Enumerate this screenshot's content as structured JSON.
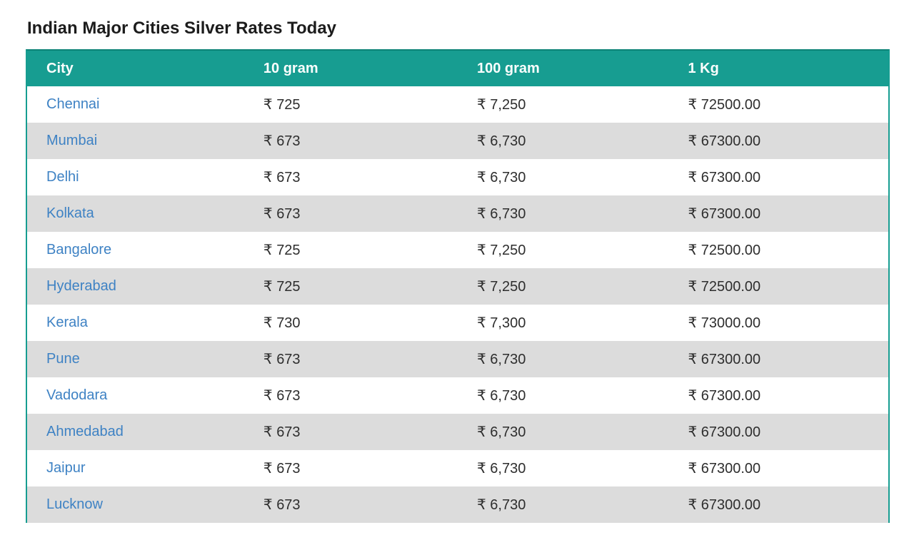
{
  "page": {
    "title": "Indian Major Cities Silver Rates Today"
  },
  "colors": {
    "header_teal": "#179d91",
    "header_teal_dark": "#0c8276",
    "row_stripe_gray": "#dcdcdc",
    "city_link_blue": "#3e82c4",
    "value_text": "#2e2e2e"
  },
  "table": {
    "columns": [
      "City",
      "10 gram",
      "100 gram",
      "1 Kg"
    ],
    "rows": [
      {
        "city": "Chennai",
        "gram10": "₹ 725",
        "gram100": "₹ 7,250",
        "kg1": "₹ 72500.00"
      },
      {
        "city": "Mumbai",
        "gram10": "₹ 673",
        "gram100": "₹ 6,730",
        "kg1": "₹ 67300.00"
      },
      {
        "city": "Delhi",
        "gram10": "₹ 673",
        "gram100": "₹ 6,730",
        "kg1": "₹ 67300.00"
      },
      {
        "city": "Kolkata",
        "gram10": "₹ 673",
        "gram100": "₹ 6,730",
        "kg1": "₹ 67300.00"
      },
      {
        "city": "Bangalore",
        "gram10": "₹ 725",
        "gram100": "₹ 7,250",
        "kg1": "₹ 72500.00"
      },
      {
        "city": "Hyderabad",
        "gram10": "₹ 725",
        "gram100": "₹ 7,250",
        "kg1": "₹ 72500.00"
      },
      {
        "city": "Kerala",
        "gram10": "₹ 730",
        "gram100": "₹ 7,300",
        "kg1": "₹ 73000.00"
      },
      {
        "city": "Pune",
        "gram10": "₹ 673",
        "gram100": "₹ 6,730",
        "kg1": "₹ 67300.00"
      },
      {
        "city": "Vadodara",
        "gram10": "₹ 673",
        "gram100": "₹ 6,730",
        "kg1": "₹ 67300.00"
      },
      {
        "city": "Ahmedabad",
        "gram10": "₹ 673",
        "gram100": "₹ 6,730",
        "kg1": "₹ 67300.00"
      },
      {
        "city": "Jaipur",
        "gram10": "₹ 673",
        "gram100": "₹ 6,730",
        "kg1": "₹ 67300.00"
      },
      {
        "city": "Lucknow",
        "gram10": "₹ 673",
        "gram100": "₹ 6,730",
        "kg1": "₹ 67300.00"
      }
    ]
  }
}
